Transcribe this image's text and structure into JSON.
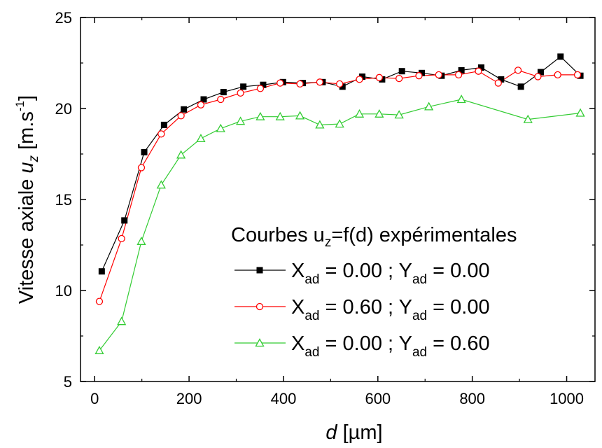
{
  "chart_data": {
    "type": "line",
    "title": "",
    "xlabel": {
      "italic": "d",
      "rest": " [µm]"
    },
    "ylabel": {
      "text": "Vitesse axiale ",
      "var": "u",
      "var_sub": "z",
      "unit_open": " [m.s",
      "unit_sup": "-1",
      "unit_close": "]"
    },
    "xlim": [
      -30,
      1060
    ],
    "ylim": [
      5,
      25
    ],
    "xticks": [
      0,
      200,
      400,
      600,
      800,
      1000
    ],
    "yticks": [
      5,
      10,
      15,
      20,
      25
    ],
    "grid": false,
    "legend_placement": "bottom-right",
    "legend_title": {
      "pre": "Courbes u",
      "sub": "z",
      "post": "=f(d) expérimentales"
    },
    "series": [
      {
        "name": "X_ad = 0.00 ; Y_ad = 0.00",
        "label": {
          "a": "X",
          "a_sub": "ad",
          "a_val": " = 0.00 ; ",
          "b": "Y",
          "b_sub": "ad",
          "b_val": " = 0.00"
        },
        "color": "#000000",
        "marker": "square",
        "x": [
          15,
          63,
          105,
          147,
          189,
          231,
          273,
          315,
          357,
          399,
          441,
          483,
          525,
          567,
          609,
          651,
          693,
          735,
          777,
          819,
          861,
          903,
          945,
          987,
          1029
        ],
        "y": [
          11.05,
          13.85,
          17.6,
          19.1,
          19.95,
          20.5,
          20.9,
          21.2,
          21.3,
          21.45,
          21.4,
          21.45,
          21.2,
          21.75,
          21.6,
          22.05,
          21.95,
          21.8,
          22.1,
          22.25,
          21.6,
          21.2,
          22.0,
          22.85,
          21.8
        ]
      },
      {
        "name": "X_ad = 0.60 ; Y_ad = 0.00",
        "label": {
          "a": "X",
          "a_sub": "ad",
          "a_val": " = 0.60 ; ",
          "b": "Y",
          "b_sub": "ad",
          "b_val": " = 0.00"
        },
        "color": "#ff0000",
        "marker": "circle",
        "x": [
          10,
          57,
          99,
          141,
          183,
          225,
          267,
          309,
          351,
          393,
          435,
          477,
          519,
          561,
          603,
          645,
          687,
          729,
          771,
          813,
          855,
          897,
          939,
          981,
          1023
        ],
        "y": [
          9.4,
          12.85,
          16.75,
          18.6,
          19.6,
          20.2,
          20.5,
          20.85,
          21.1,
          21.4,
          21.35,
          21.45,
          21.35,
          21.6,
          21.7,
          21.65,
          21.8,
          21.85,
          21.85,
          22.05,
          21.4,
          22.1,
          21.75,
          21.85,
          21.85
        ]
      },
      {
        "name": "X_ad = 0.00 ; Y_ad = 0.60",
        "label": {
          "a": "X",
          "a_sub": "ad",
          "a_val": " = 0.00 ; ",
          "b": "Y",
          "b_sub": "ad",
          "b_val": " = 0.60"
        },
        "color": "#33cc33",
        "marker": "triangle",
        "x": [
          10,
          57,
          99,
          141,
          183,
          225,
          267,
          309,
          351,
          393,
          435,
          477,
          519,
          561,
          603,
          645,
          708,
          777,
          918,
          1029
        ],
        "y": [
          6.7,
          8.3,
          12.7,
          15.8,
          17.45,
          18.35,
          18.9,
          19.3,
          19.55,
          19.55,
          19.6,
          19.1,
          19.15,
          19.7,
          19.7,
          19.65,
          20.1,
          20.5,
          19.4,
          19.75
        ]
      }
    ]
  }
}
